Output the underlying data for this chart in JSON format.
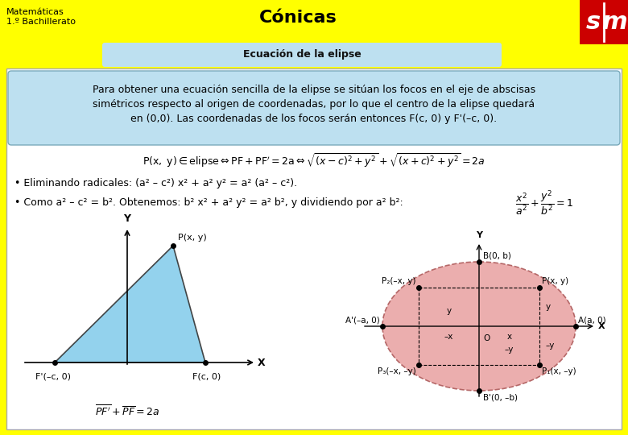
{
  "bg_color": "#FFFF00",
  "header_text": "Cónicas",
  "subtitle_text": "Ecuación de la elipse",
  "logo_bg": "#CC0000",
  "small_label_line1": "Matemáticas",
  "small_label_line2": "1.º Bachillerato",
  "info_box_color": "#BDE0F0",
  "info_line1": "Para obtener una ecuación sencilla de la elipse se sitúan los focos en el eje de abscisas",
  "info_line2": "simétricos respecto al origen de coordenadas, por lo que el centro de la elipse quedará",
  "info_line3": "en (0,0). Las coordenadas de los focos serán entonces F(c, 0) y F'(–c, 0).",
  "bullet1": "• Eliminando radicales: (a² – c²) x² + a² y² = a² (a² – c²).",
  "bullet2": "• Como a² – c² = b². Obtenemos: b² x² + a² y² = a² b², y dividiendo por a² b²:",
  "triangle_fill": "#87CEEB",
  "ellipse_fill": "#E8A0A0",
  "white_bg": "#FFFFFF",
  "content_border": "#AAAAAA"
}
